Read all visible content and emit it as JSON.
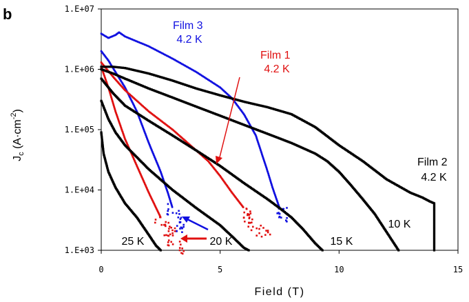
{
  "chart_data": {
    "type": "scatter",
    "panel_label": "b",
    "title": "",
    "xlabel": "Field (T)",
    "ylabel": {
      "main": "J",
      "sub": "c",
      "unit": " (A·cm",
      "sup": "-2",
      "close": ")"
    },
    "xlim": [
      0,
      15
    ],
    "ylim": [
      1000,
      10000000
    ],
    "yscale": "log",
    "grid": false,
    "x_ticks": [
      0,
      5,
      10,
      15
    ],
    "x_tick_labels": [
      "0",
      "5",
      "10",
      "15"
    ],
    "y_ticks": [
      1000,
      10000,
      100000,
      1000000,
      10000000
    ],
    "y_tick_labels": [
      "1.E+03",
      "1.E+04",
      "1.E+05",
      "1.E+06",
      "1.E+07"
    ],
    "colors": {
      "film2": "#000000",
      "film1": "#e01010",
      "film3": "#1010e0"
    },
    "series": [
      {
        "key": "film3_42K",
        "color": "#1010e0",
        "x": [
          0,
          0.3,
          0.6,
          0.75,
          1,
          2,
          3,
          4,
          5,
          5.5,
          6,
          6.5,
          7,
          7.2,
          7.5,
          7.8
        ],
        "y": [
          3900000,
          3300000,
          3700000,
          4100000,
          3500000,
          2400000,
          1500000,
          900000,
          500000,
          330000,
          180000,
          80000,
          20000,
          11000,
          5000,
          3000
        ]
      },
      {
        "key": "film3_20K",
        "color": "#1010e0",
        "x": [
          0,
          0.3,
          0.6,
          1,
          1.5,
          2,
          2.5,
          2.8,
          3,
          3.2,
          3.4
        ],
        "y": [
          2000000,
          1400000,
          900000,
          500000,
          200000,
          60000,
          20000,
          9000,
          5000,
          3000,
          2000
        ]
      },
      {
        "key": "film1_42K",
        "color": "#e01010",
        "x": [
          0,
          0.5,
          1,
          2,
          3,
          4,
          4.5,
          5,
          5.5,
          6,
          6.3,
          6.6,
          6.9
        ],
        "y": [
          1300000,
          750000,
          450000,
          200000,
          100000,
          45000,
          30000,
          17000,
          9000,
          5000,
          3000,
          2000,
          1800
        ]
      },
      {
        "key": "film1_20K",
        "color": "#e01010",
        "x": [
          0,
          0.3,
          0.6,
          1,
          1.5,
          2,
          2.5,
          2.8,
          3,
          3.2,
          3.3
        ],
        "y": [
          1100000,
          500000,
          200000,
          70000,
          25000,
          9000,
          3500,
          2200,
          1500,
          1100,
          1000
        ]
      },
      {
        "key": "film2_42K",
        "color": "#000000",
        "x": [
          0,
          0.5,
          1,
          2,
          3,
          4,
          5,
          6,
          7,
          8,
          9,
          10,
          11,
          12,
          13,
          13.5,
          13.8,
          14,
          14,
          14
        ],
        "y": [
          1100000,
          1100000,
          1050000,
          850000,
          650000,
          480000,
          370000,
          290000,
          235000,
          180000,
          110000,
          55000,
          30000,
          15000,
          9000,
          7500,
          6500,
          6000,
          2200,
          1000
        ]
      },
      {
        "key": "film2_10K",
        "color": "#000000",
        "x": [
          0,
          0.5,
          1,
          2,
          3,
          4,
          5,
          6,
          7,
          8,
          9,
          9.5,
          10,
          10.5,
          11,
          11.5,
          12,
          12.5
        ],
        "y": [
          1000000,
          850000,
          700000,
          480000,
          340000,
          240000,
          170000,
          120000,
          85000,
          60000,
          40000,
          30000,
          20000,
          12000,
          7000,
          4000,
          2000,
          1000
        ]
      },
      {
        "key": "film2_15K",
        "color": "#000000",
        "x": [
          0,
          0.5,
          1,
          2,
          3,
          4,
          5,
          6,
          7,
          7.5,
          8,
          8.5,
          9,
          9.3
        ],
        "y": [
          700000,
          400000,
          250000,
          140000,
          80000,
          45000,
          25000,
          13000,
          7000,
          5000,
          3500,
          2200,
          1300,
          1000
        ]
      },
      {
        "key": "film2_20K",
        "color": "#000000",
        "x": [
          0,
          0.3,
          0.6,
          1,
          2,
          3,
          4,
          5,
          5.5,
          6,
          6.2
        ],
        "y": [
          300000,
          150000,
          90000,
          55000,
          22000,
          10000,
          5000,
          2600,
          1700,
          1100,
          1000
        ]
      },
      {
        "key": "film2_25K",
        "color": "#000000",
        "x": [
          0,
          0.1,
          0.3,
          0.6,
          1,
          1.5,
          2,
          2.3,
          2.5
        ],
        "y": [
          90000,
          40000,
          20000,
          11000,
          6000,
          3500,
          1800,
          1200,
          1000
        ]
      }
    ],
    "annotations": [
      {
        "key": "film3",
        "line1": "Film 3",
        "line2": "4.2 K",
        "color": "#1010e0"
      },
      {
        "key": "film1",
        "line1": "Film 1",
        "line2": "4.2 K",
        "color": "#e01010"
      },
      {
        "key": "film2",
        "line1": "Film 2",
        "line2": "4.2 K",
        "color": "#000000"
      },
      {
        "key": "t25",
        "line1": "25 K",
        "color": "#000000"
      },
      {
        "key": "t20",
        "line1": "20 K",
        "color": "#000000"
      },
      {
        "key": "t15",
        "line1": "15 K",
        "color": "#000000"
      },
      {
        "key": "t10",
        "line1": "10 K",
        "color": "#000000"
      }
    ]
  }
}
